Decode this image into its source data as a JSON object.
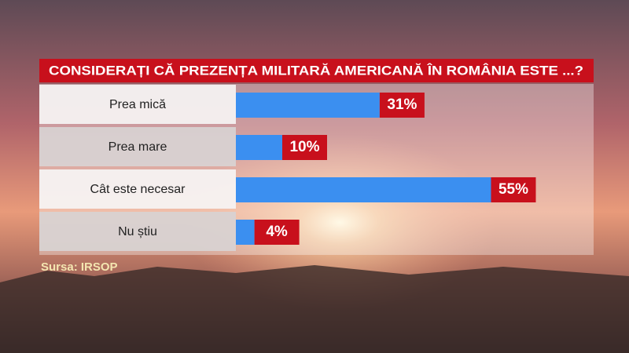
{
  "chart_data": {
    "type": "bar",
    "orientation": "horizontal",
    "title": "CONSIDERAȚI CĂ PREZENȚA MILITARĂ AMERICANĂ ÎN ROMÂNIA ESTE ...?",
    "categories": [
      "Prea mică",
      "Prea mare",
      "Cât este necesar",
      "Nu știu"
    ],
    "values": [
      31,
      10,
      55,
      4
    ],
    "value_labels": [
      "31%",
      "10%",
      "55%",
      "4%"
    ],
    "color": "#3b8ff0",
    "label_color": "#c8101c",
    "source": "Sursa: IRSOP"
  }
}
